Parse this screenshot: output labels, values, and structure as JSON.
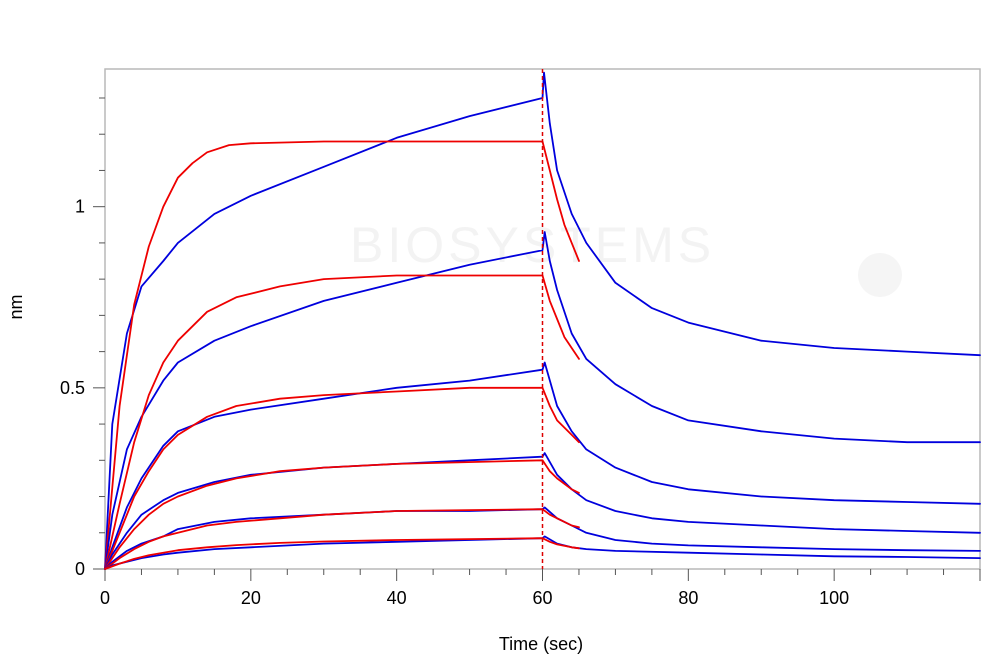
{
  "chart_data": {
    "type": "line",
    "title": "",
    "xlabel": "Time (sec)",
    "ylabel": "nm",
    "xlim": [
      0,
      120
    ],
    "ylim": [
      0,
      1.38
    ],
    "x_ticks": [
      0,
      20,
      40,
      60,
      80,
      100
    ],
    "x_tick_labels": [
      "0",
      "20",
      "40",
      "60",
      "80",
      "100"
    ],
    "y_ticks": [
      0,
      0.5,
      1
    ],
    "y_tick_labels": [
      "0",
      "0.5",
      "1"
    ],
    "grid": false,
    "legend": "none",
    "watermark": "BIOSYSTEMS",
    "vertical_marker": {
      "x": 60,
      "color": "#dd0000",
      "style": "dashed"
    },
    "colors": {
      "measured": "#0000dd",
      "fit": "#ee0000"
    },
    "series": [
      {
        "kind": "measured",
        "points": [
          [
            0,
            0
          ],
          [
            1,
            0.4
          ],
          [
            3,
            0.65
          ],
          [
            5,
            0.78
          ],
          [
            8,
            0.85
          ],
          [
            10,
            0.9
          ],
          [
            15,
            0.98
          ],
          [
            20,
            1.03
          ],
          [
            30,
            1.11
          ],
          [
            40,
            1.19
          ],
          [
            50,
            1.25
          ],
          [
            60,
            1.3
          ],
          [
            60.2,
            1.37
          ],
          [
            61,
            1.23
          ],
          [
            62,
            1.1
          ],
          [
            64,
            0.98
          ],
          [
            66,
            0.9
          ],
          [
            70,
            0.79
          ],
          [
            75,
            0.72
          ],
          [
            80,
            0.68
          ],
          [
            90,
            0.63
          ],
          [
            100,
            0.61
          ],
          [
            110,
            0.6
          ],
          [
            120,
            0.59
          ]
        ]
      },
      {
        "kind": "fit",
        "points": [
          [
            0,
            0
          ],
          [
            2,
            0.45
          ],
          [
            4,
            0.73
          ],
          [
            6,
            0.89
          ],
          [
            8,
            1.0
          ],
          [
            10,
            1.08
          ],
          [
            12,
            1.12
          ],
          [
            14,
            1.15
          ],
          [
            17,
            1.17
          ],
          [
            20,
            1.175
          ],
          [
            30,
            1.18
          ],
          [
            60,
            1.18
          ],
          [
            61,
            1.1
          ],
          [
            62,
            1.02
          ],
          [
            63,
            0.95
          ],
          [
            64,
            0.9
          ],
          [
            65,
            0.85
          ]
        ]
      },
      {
        "kind": "measured",
        "points": [
          [
            0,
            0
          ],
          [
            1,
            0.15
          ],
          [
            3,
            0.33
          ],
          [
            5,
            0.42
          ],
          [
            8,
            0.52
          ],
          [
            10,
            0.57
          ],
          [
            15,
            0.63
          ],
          [
            20,
            0.67
          ],
          [
            30,
            0.74
          ],
          [
            40,
            0.79
          ],
          [
            50,
            0.84
          ],
          [
            60,
            0.88
          ],
          [
            60.3,
            0.93
          ],
          [
            61,
            0.85
          ],
          [
            62,
            0.77
          ],
          [
            64,
            0.65
          ],
          [
            66,
            0.58
          ],
          [
            70,
            0.51
          ],
          [
            75,
            0.45
          ],
          [
            80,
            0.41
          ],
          [
            90,
            0.38
          ],
          [
            100,
            0.36
          ],
          [
            110,
            0.35
          ],
          [
            120,
            0.35
          ]
        ]
      },
      {
        "kind": "fit",
        "points": [
          [
            0,
            0
          ],
          [
            2,
            0.18
          ],
          [
            4,
            0.35
          ],
          [
            6,
            0.48
          ],
          [
            8,
            0.57
          ],
          [
            10,
            0.63
          ],
          [
            14,
            0.71
          ],
          [
            18,
            0.75
          ],
          [
            24,
            0.78
          ],
          [
            30,
            0.8
          ],
          [
            40,
            0.81
          ],
          [
            60,
            0.81
          ],
          [
            61,
            0.74
          ],
          [
            62,
            0.69
          ],
          [
            63,
            0.64
          ],
          [
            65,
            0.58
          ]
        ]
      },
      {
        "kind": "measured",
        "points": [
          [
            0,
            0
          ],
          [
            1,
            0.06
          ],
          [
            3,
            0.17
          ],
          [
            5,
            0.25
          ],
          [
            8,
            0.34
          ],
          [
            10,
            0.38
          ],
          [
            15,
            0.42
          ],
          [
            20,
            0.44
          ],
          [
            30,
            0.47
          ],
          [
            40,
            0.5
          ],
          [
            50,
            0.52
          ],
          [
            60,
            0.55
          ],
          [
            60.3,
            0.57
          ],
          [
            62,
            0.45
          ],
          [
            64,
            0.38
          ],
          [
            66,
            0.33
          ],
          [
            70,
            0.28
          ],
          [
            75,
            0.24
          ],
          [
            80,
            0.22
          ],
          [
            90,
            0.2
          ],
          [
            100,
            0.19
          ],
          [
            110,
            0.185
          ],
          [
            120,
            0.18
          ]
        ]
      },
      {
        "kind": "fit",
        "points": [
          [
            0,
            0
          ],
          [
            2,
            0.1
          ],
          [
            4,
            0.2
          ],
          [
            6,
            0.27
          ],
          [
            8,
            0.33
          ],
          [
            10,
            0.37
          ],
          [
            14,
            0.42
          ],
          [
            18,
            0.45
          ],
          [
            24,
            0.47
          ],
          [
            30,
            0.48
          ],
          [
            40,
            0.49
          ],
          [
            50,
            0.5
          ],
          [
            60,
            0.5
          ],
          [
            61,
            0.45
          ],
          [
            62,
            0.41
          ],
          [
            64,
            0.37
          ],
          [
            65,
            0.35
          ]
        ]
      },
      {
        "kind": "measured",
        "points": [
          [
            0,
            0
          ],
          [
            1,
            0.04
          ],
          [
            3,
            0.1
          ],
          [
            5,
            0.15
          ],
          [
            8,
            0.19
          ],
          [
            10,
            0.21
          ],
          [
            15,
            0.24
          ],
          [
            20,
            0.26
          ],
          [
            30,
            0.28
          ],
          [
            40,
            0.29
          ],
          [
            50,
            0.3
          ],
          [
            60,
            0.31
          ],
          [
            60.3,
            0.32
          ],
          [
            62,
            0.26
          ],
          [
            64,
            0.22
          ],
          [
            66,
            0.19
          ],
          [
            70,
            0.16
          ],
          [
            75,
            0.14
          ],
          [
            80,
            0.13
          ],
          [
            90,
            0.12
          ],
          [
            100,
            0.11
          ],
          [
            110,
            0.105
          ],
          [
            120,
            0.1
          ]
        ]
      },
      {
        "kind": "fit",
        "points": [
          [
            0,
            0
          ],
          [
            2,
            0.06
          ],
          [
            4,
            0.11
          ],
          [
            6,
            0.15
          ],
          [
            8,
            0.18
          ],
          [
            10,
            0.2
          ],
          [
            14,
            0.23
          ],
          [
            18,
            0.25
          ],
          [
            24,
            0.27
          ],
          [
            30,
            0.28
          ],
          [
            40,
            0.29
          ],
          [
            60,
            0.3
          ],
          [
            61,
            0.27
          ],
          [
            62,
            0.25
          ],
          [
            64,
            0.22
          ],
          [
            65,
            0.21
          ]
        ]
      },
      {
        "kind": "measured",
        "points": [
          [
            0,
            0
          ],
          [
            1,
            0.02
          ],
          [
            3,
            0.05
          ],
          [
            5,
            0.07
          ],
          [
            8,
            0.09
          ],
          [
            10,
            0.11
          ],
          [
            15,
            0.13
          ],
          [
            20,
            0.14
          ],
          [
            30,
            0.15
          ],
          [
            40,
            0.16
          ],
          [
            50,
            0.16
          ],
          [
            60,
            0.165
          ],
          [
            60.3,
            0.17
          ],
          [
            62,
            0.14
          ],
          [
            64,
            0.12
          ],
          [
            66,
            0.1
          ],
          [
            70,
            0.08
          ],
          [
            75,
            0.07
          ],
          [
            80,
            0.065
          ],
          [
            90,
            0.06
          ],
          [
            100,
            0.055
          ],
          [
            110,
            0.052
          ],
          [
            120,
            0.05
          ]
        ]
      },
      {
        "kind": "fit",
        "points": [
          [
            0,
            0
          ],
          [
            2,
            0.03
          ],
          [
            4,
            0.055
          ],
          [
            6,
            0.075
          ],
          [
            8,
            0.09
          ],
          [
            10,
            0.1
          ],
          [
            14,
            0.12
          ],
          [
            18,
            0.13
          ],
          [
            24,
            0.14
          ],
          [
            30,
            0.15
          ],
          [
            40,
            0.16
          ],
          [
            60,
            0.165
          ],
          [
            61,
            0.15
          ],
          [
            62,
            0.14
          ],
          [
            64,
            0.12
          ],
          [
            65,
            0.115
          ]
        ]
      },
      {
        "kind": "measured",
        "points": [
          [
            0,
            0
          ],
          [
            1,
            0.01
          ],
          [
            3,
            0.02
          ],
          [
            5,
            0.03
          ],
          [
            8,
            0.04
          ],
          [
            10,
            0.045
          ],
          [
            15,
            0.055
          ],
          [
            20,
            0.06
          ],
          [
            30,
            0.07
          ],
          [
            40,
            0.075
          ],
          [
            50,
            0.08
          ],
          [
            60,
            0.085
          ],
          [
            60.3,
            0.09
          ],
          [
            62,
            0.07
          ],
          [
            64,
            0.06
          ],
          [
            66,
            0.055
          ],
          [
            70,
            0.05
          ],
          [
            80,
            0.045
          ],
          [
            90,
            0.04
          ],
          [
            100,
            0.035
          ],
          [
            110,
            0.033
          ],
          [
            120,
            0.03
          ]
        ]
      },
      {
        "kind": "fit",
        "points": [
          [
            0,
            0
          ],
          [
            2,
            0.015
          ],
          [
            4,
            0.028
          ],
          [
            6,
            0.038
          ],
          [
            8,
            0.045
          ],
          [
            10,
            0.052
          ],
          [
            14,
            0.06
          ],
          [
            18,
            0.066
          ],
          [
            24,
            0.072
          ],
          [
            30,
            0.076
          ],
          [
            40,
            0.08
          ],
          [
            60,
            0.085
          ],
          [
            61,
            0.075
          ],
          [
            62,
            0.068
          ],
          [
            64,
            0.06
          ],
          [
            65,
            0.057
          ]
        ]
      }
    ]
  }
}
